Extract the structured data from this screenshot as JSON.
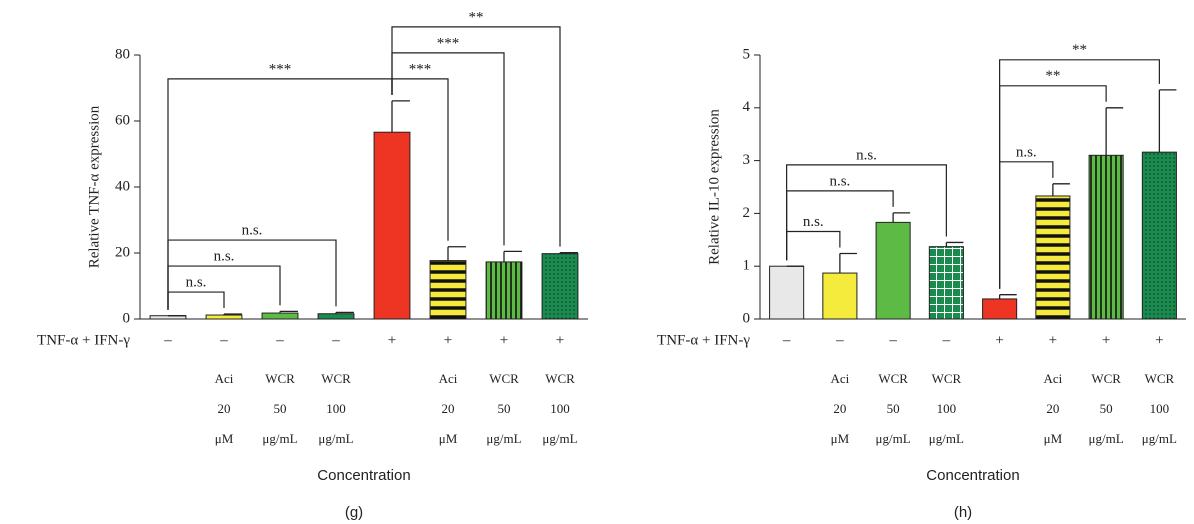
{
  "chart_data": [
    {
      "type": "bar",
      "panel": "(g)",
      "ylabel": "Relative TNF-α expression",
      "xlabel": "Concentration",
      "row_label": "TNF-α + IFN-γ",
      "categories": [
        "–",
        "–",
        "–",
        "–",
        "+",
        "+",
        "+",
        "+"
      ],
      "treatment_lines": [
        [
          null,
          "Aci",
          "WCR",
          "WCR",
          null,
          "Aci",
          "WCR",
          "WCR"
        ],
        [
          null,
          "20",
          "50",
          "100",
          null,
          "20",
          "50",
          "100"
        ],
        [
          null,
          "μM",
          "μg/mL",
          "μg/mL",
          null,
          "μM",
          "μg/mL",
          "μg/mL"
        ]
      ],
      "values": [
        1,
        1.2,
        1.8,
        1.6,
        56.6,
        17.7,
        17.3,
        19.8
      ],
      "errors": [
        0,
        0.3,
        0.5,
        0.4,
        9.5,
        4.2,
        3.2,
        0.3
      ],
      "colors": [
        "#e8e8e8",
        "#f5eb3c",
        "#5dbb45",
        "#1a8a4f",
        "#ee3524",
        "#f5eb3c",
        "#5dbb45",
        "#1a8a4f"
      ],
      "patterns": [
        "solid",
        "solid",
        "solid",
        "solid",
        "solid",
        "hstripes",
        "vstripes",
        "crosshatch"
      ],
      "ylim": [
        0,
        80
      ],
      "yticks": [
        0,
        20,
        40,
        60,
        80
      ],
      "brackets": [
        {
          "from": 0,
          "to": 1,
          "label": "n.s."
        },
        {
          "from": 0,
          "to": 2,
          "label": "n.s."
        },
        {
          "from": 0,
          "to": 3,
          "label": "n.s."
        },
        {
          "from": 4,
          "to": 5,
          "label": "***"
        },
        {
          "from": 4,
          "to": 6,
          "label": "***"
        },
        {
          "from": 4,
          "to": 7,
          "label": "**"
        },
        {
          "from": 0,
          "to": 4,
          "label": "***"
        }
      ]
    },
    {
      "type": "bar",
      "panel": "(h)",
      "ylabel": "Relative IL-10 expression",
      "xlabel": "Concentration",
      "row_label": "TNF-α + IFN-γ",
      "categories": [
        "–",
        "–",
        "–",
        "–",
        "+",
        "+",
        "+",
        "+"
      ],
      "treatment_lines": [
        [
          null,
          "Aci",
          "WCR",
          "WCR",
          null,
          "Aci",
          "WCR",
          "WCR"
        ],
        [
          null,
          "20",
          "50",
          "100",
          null,
          "20",
          "50",
          "100"
        ],
        [
          null,
          "μM",
          "μg/mL",
          "μg/mL",
          null,
          "μM",
          "μg/mL",
          "μg/mL"
        ]
      ],
      "values": [
        1,
        0.87,
        1.83,
        1.37,
        0.38,
        2.33,
        3.1,
        3.16
      ],
      "errors": [
        0,
        0.37,
        0.18,
        0.08,
        0.08,
        0.23,
        0.9,
        1.18
      ],
      "colors": [
        "#e8e8e8",
        "#f5eb3c",
        "#5dbb45",
        "#1a8a4f",
        "#ee3524",
        "#f5eb3c",
        "#5dbb45",
        "#1a8a4f"
      ],
      "patterns": [
        "solid",
        "solid",
        "solid",
        "grid",
        "solid",
        "hstripes",
        "vstripes",
        "crosshatch"
      ],
      "ylim": [
        0,
        5
      ],
      "yticks": [
        0,
        1,
        2,
        3,
        4,
        5
      ],
      "brackets": [
        {
          "from": 0,
          "to": 1,
          "label": "n.s."
        },
        {
          "from": 0,
          "to": 2,
          "label": "n.s."
        },
        {
          "from": 0,
          "to": 3,
          "label": "n.s."
        },
        {
          "from": 4,
          "to": 5,
          "label": "n.s."
        },
        {
          "from": 4,
          "to": 6,
          "label": "**"
        },
        {
          "from": 4,
          "to": 7,
          "label": "**"
        }
      ]
    }
  ]
}
